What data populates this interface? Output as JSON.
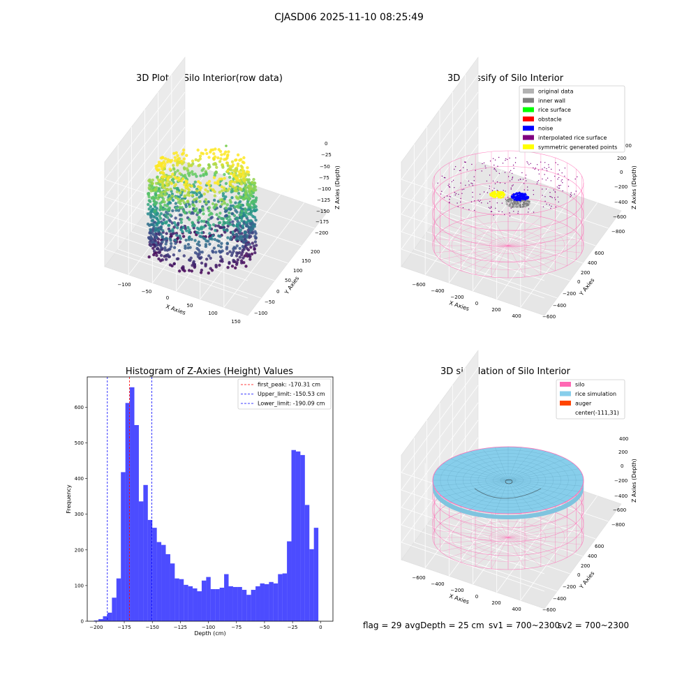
{
  "figure": {
    "suptitle": "CJASD06 2025-11-10 08:25:49",
    "status": {
      "flag": "flag = 29",
      "avg_depth": "avgDepth = 25 cm",
      "sv1": "sv1 = 700~2300",
      "sv2": "sv2 = 700~2300"
    }
  },
  "panel_raw": {
    "title": "3D Plot of Silo Interior(row data)",
    "xlabel": "X Axies",
    "ylabel": "Y Axies",
    "zlabel": "Z Axies (Depth)",
    "x_ticks": [
      "−100",
      "−50",
      "0",
      "50",
      "100",
      "150"
    ],
    "y_ticks": [
      "−100",
      "−50",
      "0",
      "50",
      "100",
      "150",
      "200"
    ],
    "z_ticks": [
      "0",
      "−25",
      "−50",
      "−75",
      "−100",
      "−125",
      "−150",
      "−175",
      "−200"
    ],
    "colormap": "viridis"
  },
  "panel_classify": {
    "title": "3D classify of Silo Interior",
    "xlabel": "X Axies",
    "ylabel": "Y Axies",
    "zlabel": "Z Axies (Depth)",
    "x_ticks": [
      "−600",
      "−400",
      "−200",
      "0",
      "200",
      "400"
    ],
    "y_ticks": [
      "−600",
      "−400",
      "−200",
      "0",
      "200",
      "400",
      "600"
    ],
    "z_ticks": [
      "200",
      "0",
      "−200",
      "−400",
      "−600",
      "−800"
    ],
    "z_top_partial": "00",
    "legend": [
      {
        "label": "original data",
        "color": "#b3b3b3"
      },
      {
        "label": "inner wall",
        "color": "#808080"
      },
      {
        "label": "rice surface",
        "color": "#00ff00"
      },
      {
        "label": "obstacle",
        "color": "#ff0000"
      },
      {
        "label": "noise",
        "color": "#0000ff"
      },
      {
        "label": "interpolated rice surface",
        "color": "#800080"
      },
      {
        "label": "symmetric generated points",
        "color": "#ffff00"
      }
    ]
  },
  "panel_hist": {
    "title": "Histogram of Z-Axies (Height) Values",
    "legend": [
      {
        "label": "first_peak: -170.31 cm",
        "color": "#ff0000"
      },
      {
        "label": "Upper_limit: -150.53 cm",
        "color": "#0000ff"
      },
      {
        "label": "Lower_limit: -190.09 cm",
        "color": "#0000ff"
      }
    ]
  },
  "panel_sim": {
    "title": "3D simulation of Silo Interior",
    "xlabel": "X Axies",
    "ylabel": "Y Axies",
    "zlabel": "Z Axies (Depth)",
    "x_ticks": [
      "−600",
      "−400",
      "−200",
      "0",
      "200",
      "400"
    ],
    "y_ticks": [
      "−600",
      "−400",
      "−200",
      "0",
      "200",
      "400",
      "600"
    ],
    "z_ticks": [
      "400",
      "200",
      "0",
      "−200",
      "−400",
      "−600",
      "−800"
    ],
    "legend": [
      {
        "label": "silo",
        "color": "#ff69b4"
      },
      {
        "label": "rice simulation",
        "color": "#87ceeb"
      },
      {
        "label": "auger",
        "color": "#ff4500"
      },
      {
        "label": "center(-111,31)",
        "color": ""
      }
    ]
  },
  "chart_data": {
    "type": "bar",
    "title": "Histogram of Z-Axies (Height) Values",
    "xlabel": "Depth (cm)",
    "ylabel": "Frequency",
    "xlim": [
      -208,
      11
    ],
    "ylim": [
      0,
      685
    ],
    "x_ticks": [
      -200,
      -175,
      -150,
      -125,
      -100,
      -75,
      -50,
      -25,
      0
    ],
    "x_tick_labels": [
      "−200",
      "−175",
      "−150",
      "−125",
      "−100",
      "−75",
      "−50",
      "−25",
      "0"
    ],
    "y_ticks": [
      0,
      100,
      200,
      300,
      400,
      500,
      600
    ],
    "bar_color": "#0000ff",
    "bin_edges": [
      -202.0,
      -198.0,
      -194.0,
      -190.0,
      -186.0,
      -182.0,
      -178.0,
      -174.0,
      -170.0,
      -166.0,
      -162.0,
      -158.0,
      -154.0,
      -150.0,
      -146.0,
      -142.0,
      -138.0,
      -134.0,
      -130.0,
      -126.0,
      -122.0,
      -118.0,
      -114.0,
      -110.0,
      -106.0,
      -102.0,
      -98.0,
      -94.0,
      -90.0,
      -86.0,
      -82.0,
      -78.0,
      -74.0,
      -70.0,
      -66.0,
      -62.0,
      -58.0,
      -54.0,
      -50.0,
      -46.0,
      -42.0,
      -38.0,
      -34.0,
      -30.0,
      -26.0,
      -22.0,
      -18.0,
      -14.0,
      -10.0,
      -6.0,
      -2.0,
      2.0
    ],
    "counts": [
      2,
      6,
      14,
      24,
      66,
      120,
      418,
      612,
      656,
      550,
      336,
      382,
      284,
      262,
      222,
      214,
      188,
      162,
      120,
      118,
      102,
      98,
      92,
      84,
      114,
      124,
      90,
      90,
      94,
      132,
      98,
      96,
      96,
      88,
      74,
      88,
      98,
      106,
      104,
      110,
      106,
      132,
      134,
      224,
      480,
      476,
      466,
      326,
      202,
      262,
      0
    ],
    "vlines": [
      {
        "x": -170.31,
        "color": "#ff0000",
        "label": "first_peak: -170.31 cm"
      },
      {
        "x": -150.53,
        "color": "#0000ff",
        "label": "Upper_limit: -150.53 cm"
      },
      {
        "x": -190.09,
        "color": "#0000ff",
        "label": "Lower_limit: -190.09 cm"
      }
    ],
    "legend_position": "upper right",
    "grid": false
  }
}
